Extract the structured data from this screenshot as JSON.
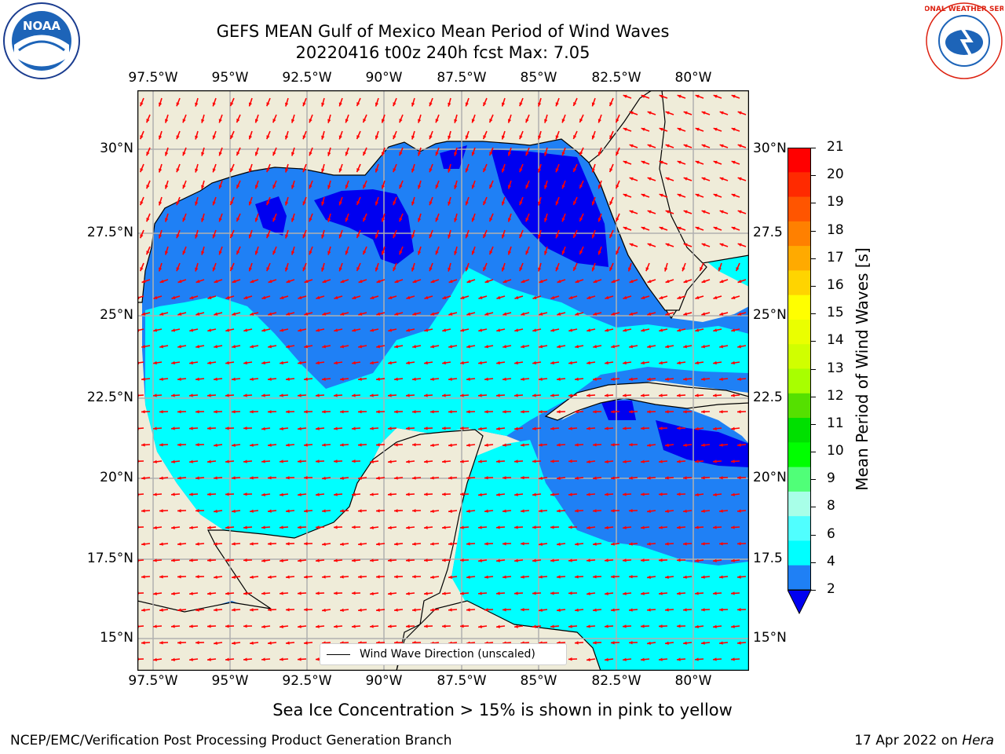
{
  "title": {
    "line1": "GEFS MEAN Gulf of Mexico Mean Period of Wind Waves",
    "line2": "20220416 t00z 240h fcst   Max: 7.05"
  },
  "logos": {
    "left": "NOAA",
    "right": "NATIONAL WEATHER SERVICE"
  },
  "map": {
    "lon_labels": [
      "97.5°W",
      "95°W",
      "92.5°W",
      "90°W",
      "87.5°W",
      "85°W",
      "82.5°W",
      "80°W"
    ],
    "lat_labels_left": [
      "30°N",
      "27.5°N",
      "25°N",
      "22.5°N",
      "20°N",
      "17.5°N",
      "15°N"
    ],
    "lat_labels_right": [
      "30°N",
      "27.5",
      "25°N",
      "22.5",
      "20°N",
      "17.5",
      "15°N"
    ],
    "colors": {
      "land": "#efecd9",
      "band_2_4": "#1f80f5",
      "band_4_6": "#00ffff",
      "below_2": "#0000f0",
      "arrows": "#ff0000",
      "grid": "#b0b0b0"
    },
    "legend_label": "Wind Wave Direction (unscaled)"
  },
  "colorbar": {
    "label": "Mean Period of Wind Waves [s]",
    "ticks": [
      "21",
      "20",
      "19",
      "18",
      "17",
      "16",
      "15",
      "14",
      "13",
      "12",
      "11",
      "10",
      "9",
      "8",
      "6",
      "4",
      "2"
    ],
    "colors": [
      "#ff0000",
      "#ff2a00",
      "#ff5500",
      "#ff8000",
      "#ffaa00",
      "#ffd400",
      "#ffff00",
      "#eaff00",
      "#d0ff00",
      "#a8ff00",
      "#55e000",
      "#00e000",
      "#00ff00",
      "#50ff78",
      "#a8ffe8",
      "#50ffff",
      "#00ffff",
      "#1f80f5"
    ],
    "extend_color": "#0000f0"
  },
  "notes": {
    "sea_ice": "Sea Ice Concentration > 15% is shown in pink to yellow",
    "footer_left": "NCEP/EMC/Verification Post Processing Product Generation Branch",
    "footer_right_date": "17 Apr 2022 on ",
    "footer_right_machine": "Hera"
  }
}
